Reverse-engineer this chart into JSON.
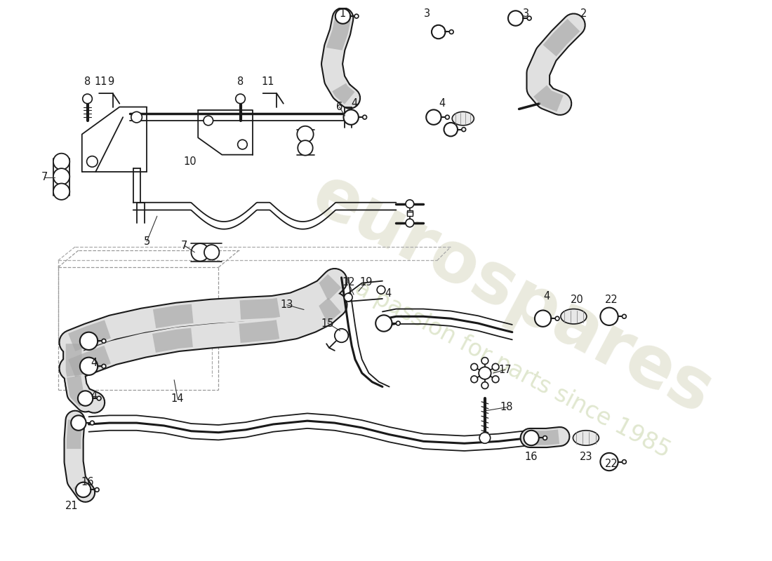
{
  "bg": "#ffffff",
  "lc": "#1a1a1a",
  "wm1": "eurospares",
  "wm2": "a passion for parts since 1985",
  "wm_color": "#c8c8a8",
  "wm_alpha": 0.38,
  "figw": 11.0,
  "figh": 8.0,
  "dpi": 100
}
